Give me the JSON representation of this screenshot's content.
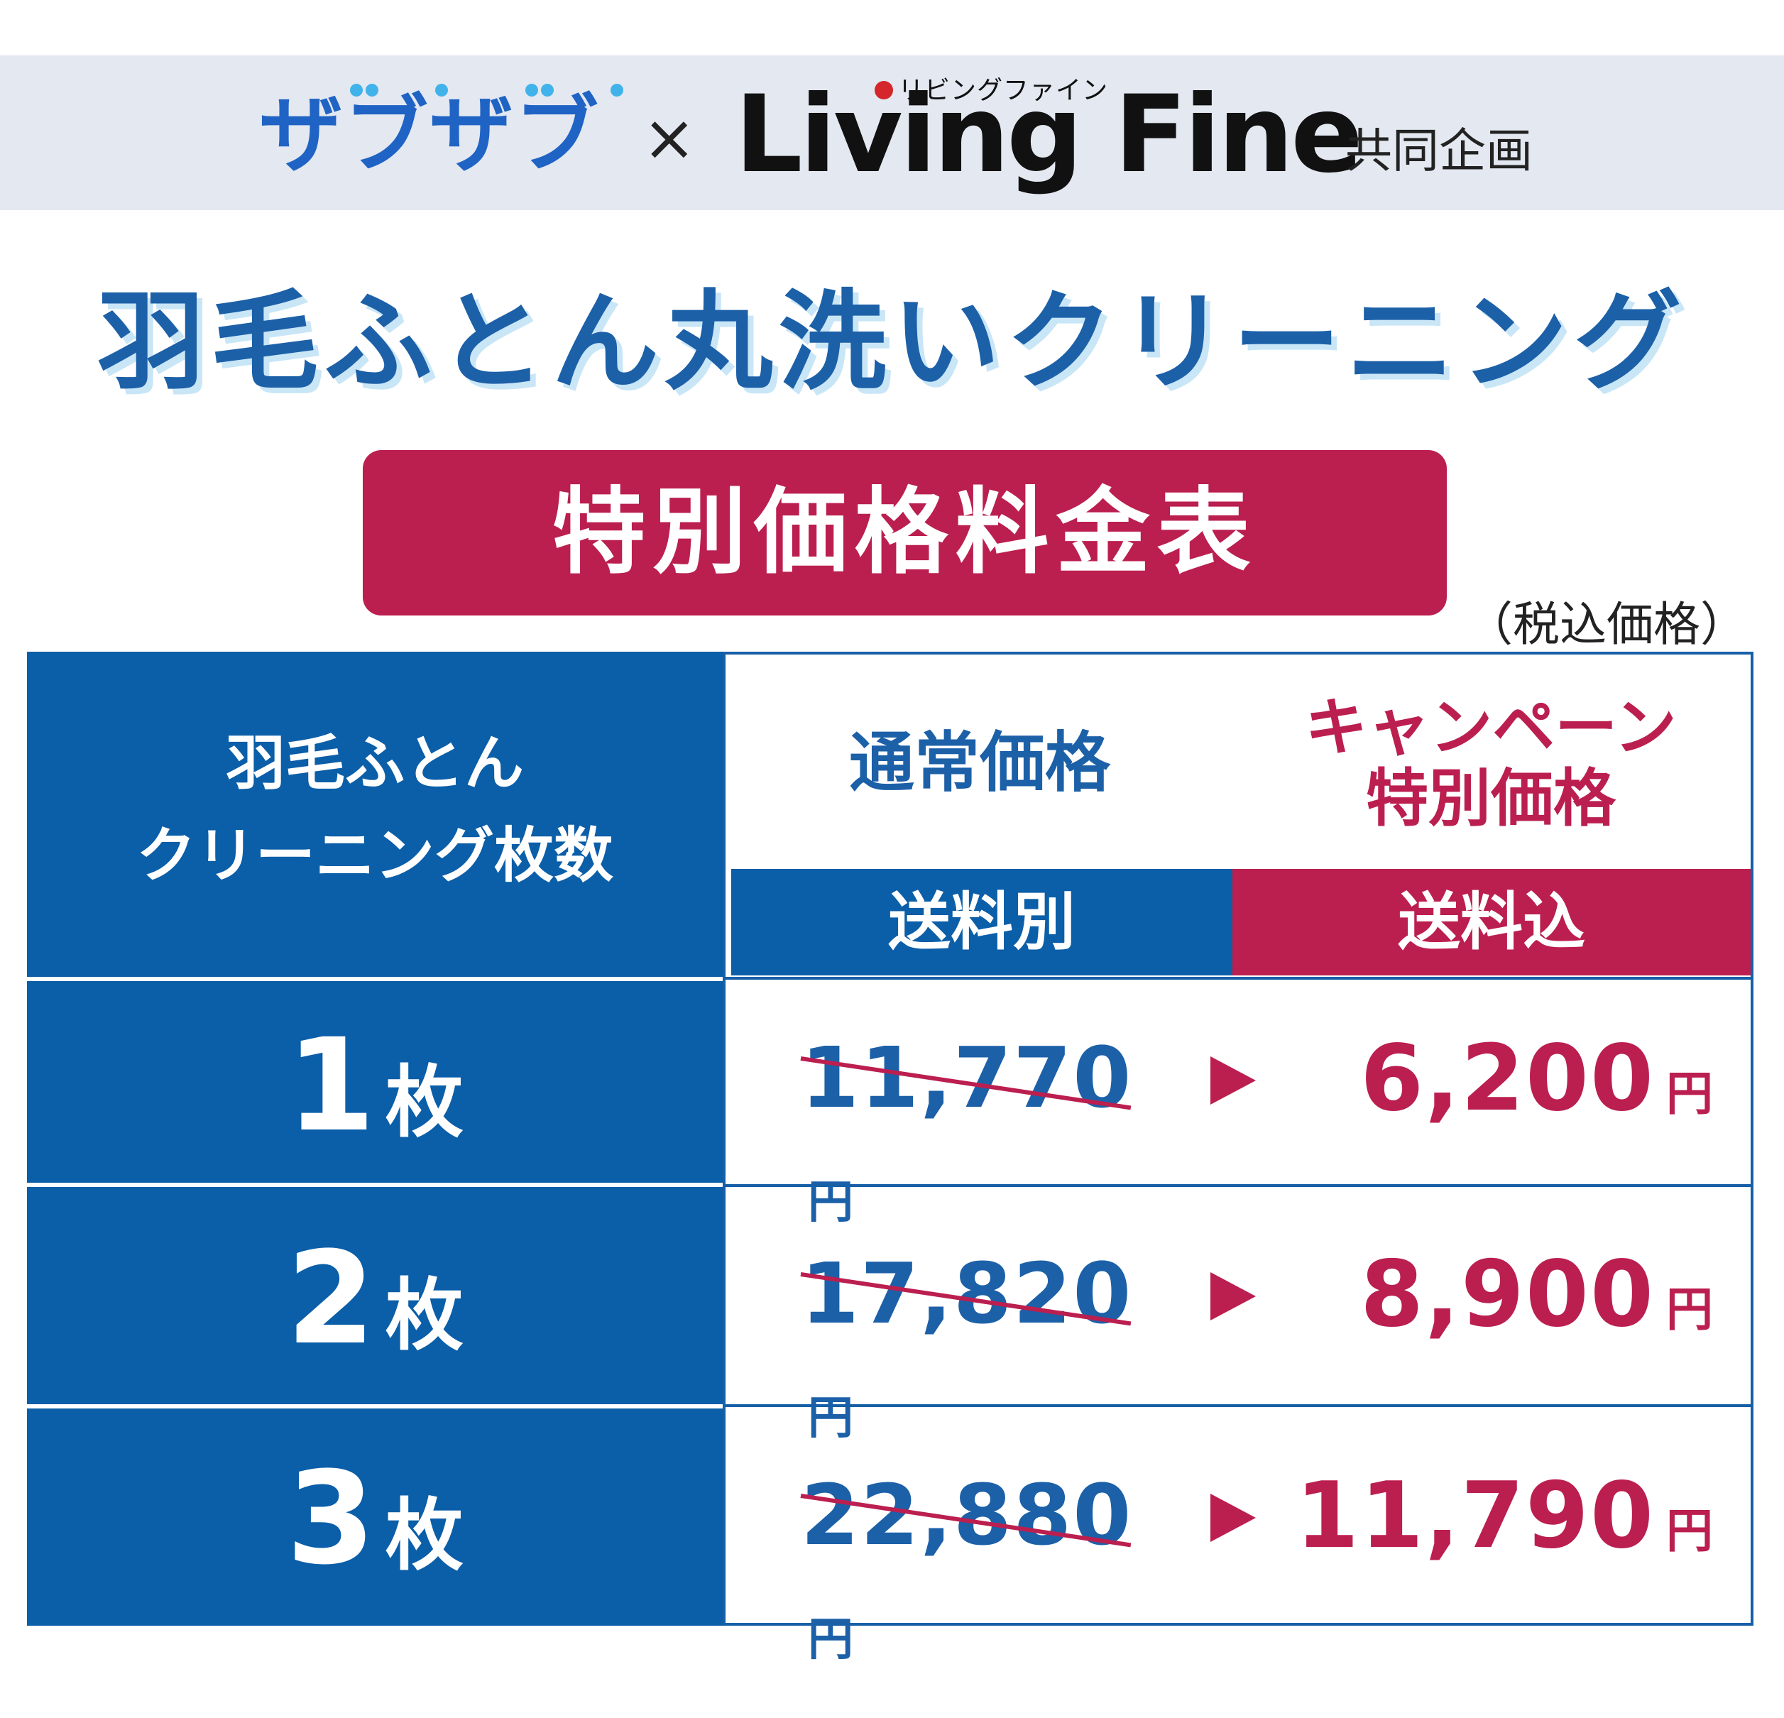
{
  "header": {
    "brand_left": "ザブザブ",
    "times": "×",
    "brand_right": "Living Fine",
    "brand_right_ruby": "リビングファイン",
    "joint": "共同企画"
  },
  "title": "羽毛ふとん丸洗いクリーニング",
  "badge": "特別価格料金表",
  "tax_note": "（税込価格）",
  "table": {
    "head_left_line1": "羽毛ふとん",
    "head_left_line2": "クリーニング枚数",
    "col_normal": "通常価格",
    "col_campaign_line1": "キャンペーン",
    "col_campaign_line2": "特別価格",
    "sub_normal": "送料別",
    "sub_campaign": "送料込",
    "yen": "円",
    "unit": "枚",
    "rows": [
      {
        "qty": "1",
        "old": "11,770",
        "new": "6,200"
      },
      {
        "qty": "2",
        "old": "17,820",
        "new": "8,900"
      },
      {
        "qty": "3",
        "old": "22,880",
        "new": "11,790"
      }
    ]
  },
  "colors": {
    "blue": "#0b5ea8",
    "red": "#bb1f4f",
    "header_bg": "#e3e8f1"
  }
}
